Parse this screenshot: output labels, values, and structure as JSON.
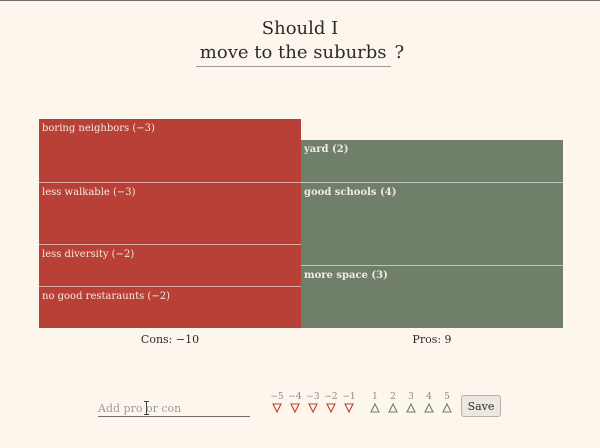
{
  "title": {
    "prefix": "Should I",
    "question": "move to the suburbs",
    "suffix": "?"
  },
  "cons": {
    "items": [
      {
        "label": "boring neighbors (−3)",
        "weight": -3
      },
      {
        "label": "less walkable (−3)",
        "weight": -3
      },
      {
        "label": "less diversity (−2)",
        "weight": -2
      },
      {
        "label": "no good restaraunts (−2)",
        "weight": -2
      }
    ],
    "total_label": "Cons: −10",
    "color": "#b84036"
  },
  "pros": {
    "items": [
      {
        "label": "yard (2)",
        "weight": 2
      },
      {
        "label": "good schools (4)",
        "weight": 4
      },
      {
        "label": "more space (3)",
        "weight": 3
      }
    ],
    "total_label": "Pros: 9",
    "color": "#6f7f6a"
  },
  "add_form": {
    "placeholder": "Add pro or con",
    "negative_weights": [
      "−5",
      "−4",
      "−3",
      "−2",
      "−1"
    ],
    "positive_weights": [
      "1",
      "2",
      "3",
      "4",
      "5"
    ],
    "save_label": "Save"
  }
}
